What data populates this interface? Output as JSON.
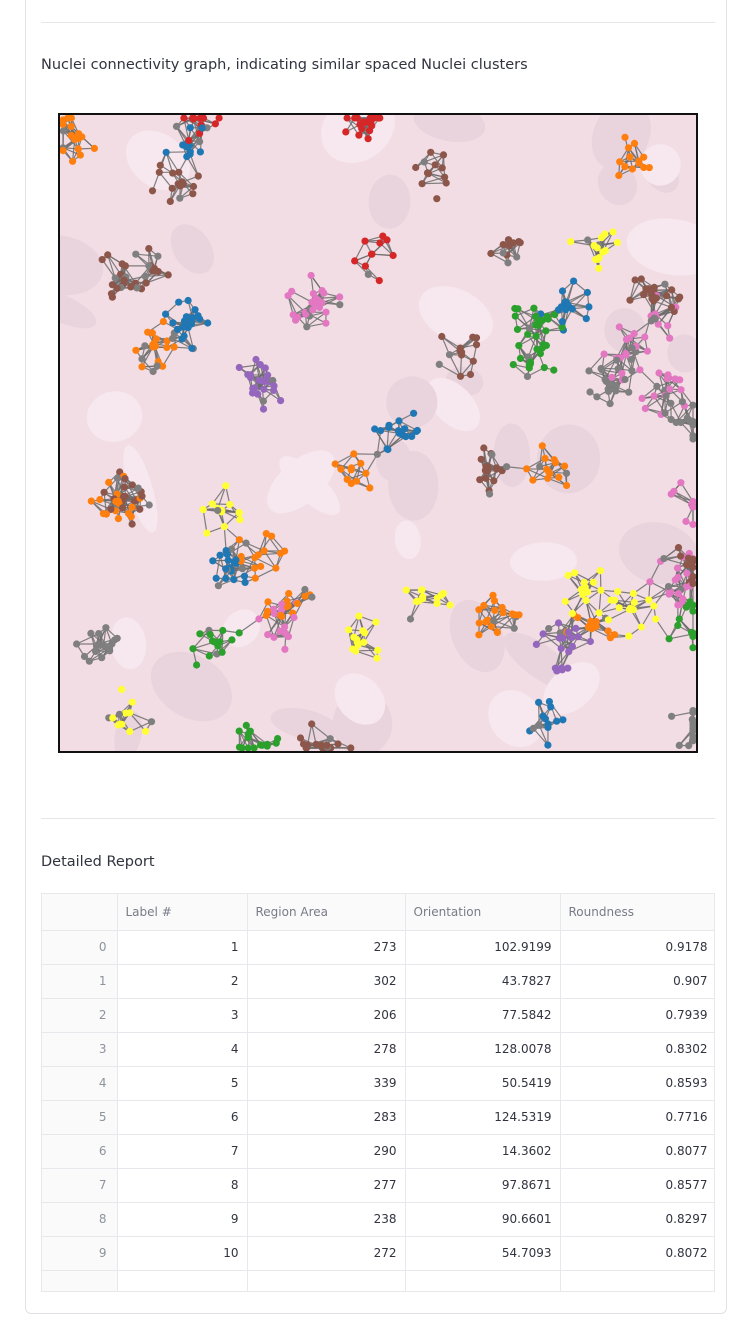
{
  "caption": "Nuclei connectivity graph, indicating similar spaced Nuclei clusters",
  "report_title": "Detailed Report",
  "table": {
    "columns": [
      "",
      "Label #",
      "Region Area",
      "Orientation",
      "Roundness"
    ],
    "rows": [
      {
        "index": "0",
        "label": "1",
        "area": "273",
        "orientation": "102.9199",
        "roundness": "0.9178"
      },
      {
        "index": "1",
        "label": "2",
        "area": "302",
        "orientation": "43.7827",
        "roundness": "0.907"
      },
      {
        "index": "2",
        "label": "3",
        "area": "206",
        "orientation": "77.5842",
        "roundness": "0.7939"
      },
      {
        "index": "3",
        "label": "4",
        "area": "278",
        "orientation": "128.0078",
        "roundness": "0.8302"
      },
      {
        "index": "4",
        "label": "5",
        "area": "339",
        "orientation": "50.5419",
        "roundness": "0.8593"
      },
      {
        "index": "5",
        "label": "6",
        "area": "283",
        "orientation": "124.5319",
        "roundness": "0.7716"
      },
      {
        "index": "6",
        "label": "7",
        "area": "290",
        "orientation": "14.3602",
        "roundness": "0.8077"
      },
      {
        "index": "7",
        "label": "8",
        "area": "277",
        "orientation": "97.8671",
        "roundness": "0.8577"
      },
      {
        "index": "8",
        "label": "9",
        "area": "238",
        "orientation": "90.6601",
        "roundness": "0.8297"
      },
      {
        "index": "9",
        "label": "10",
        "area": "272",
        "orientation": "54.7093",
        "roundness": "0.8072"
      }
    ]
  },
  "graph_colors": {
    "tissue_background": "#f1dde3",
    "edges": "#6b6b6b",
    "clusters": [
      "#d62728",
      "#1f77b4",
      "#2ca02c",
      "#ff7f0e",
      "#9467bd",
      "#8c564b",
      "#e377c2",
      "#ffff33",
      "#7f7f7f"
    ]
  }
}
